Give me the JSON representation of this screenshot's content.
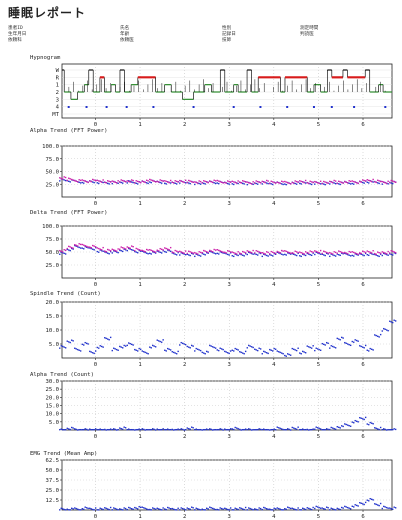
{
  "title": "睡眠レポート",
  "header": {
    "col1": [
      "患者ID",
      "生年月日",
      "依頼科"
    ],
    "col2": [
      "氏名",
      "年齢",
      "依頼医"
    ],
    "col3": [
      "性別",
      "記録日",
      "技師"
    ],
    "col4": [
      "",
      "測定時間",
      "判読医"
    ]
  },
  "chart_data": [
    {
      "type": "line",
      "title": "Hypnogram",
      "x_ticks": [
        "0",
        "1",
        "2",
        "3",
        "4",
        "5",
        "6"
      ],
      "xlim": [
        -0.75,
        6.65
      ],
      "y_ticks": [
        "W",
        "R",
        "1",
        "2",
        "3",
        "4",
        "MT"
      ],
      "series_colors": {
        "wake_rem": "#d81b1b",
        "nrem": "#2a8a2a",
        "marker": "#2233cc"
      },
      "stages": [
        {
          "x": -0.75,
          "s": "W"
        },
        {
          "x": -0.7,
          "s": "2"
        },
        {
          "x": -0.55,
          "s": "3"
        },
        {
          "x": -0.4,
          "s": "2"
        },
        {
          "x": -0.25,
          "s": "1"
        },
        {
          "x": -0.15,
          "s": "W"
        },
        {
          "x": -0.05,
          "s": "2"
        },
        {
          "x": 0.1,
          "s": "R"
        },
        {
          "x": 0.2,
          "s": "2"
        },
        {
          "x": 0.35,
          "s": "1"
        },
        {
          "x": 0.45,
          "s": "2"
        },
        {
          "x": 0.55,
          "s": "W"
        },
        {
          "x": 0.65,
          "s": "2"
        },
        {
          "x": 0.8,
          "s": "1"
        },
        {
          "x": 0.95,
          "s": "R"
        },
        {
          "x": 1.35,
          "s": "2"
        },
        {
          "x": 1.55,
          "s": "1"
        },
        {
          "x": 1.7,
          "s": "2"
        },
        {
          "x": 1.95,
          "s": "3"
        },
        {
          "x": 2.2,
          "s": "2"
        },
        {
          "x": 2.45,
          "s": "1"
        },
        {
          "x": 2.6,
          "s": "2"
        },
        {
          "x": 2.8,
          "s": "W"
        },
        {
          "x": 2.9,
          "s": "2"
        },
        {
          "x": 3.1,
          "s": "1"
        },
        {
          "x": 3.2,
          "s": "2"
        },
        {
          "x": 3.4,
          "s": "W"
        },
        {
          "x": 3.5,
          "s": "2"
        },
        {
          "x": 3.65,
          "s": "R"
        },
        {
          "x": 4.15,
          "s": "2"
        },
        {
          "x": 4.25,
          "s": "R"
        },
        {
          "x": 4.75,
          "s": "2"
        },
        {
          "x": 4.9,
          "s": "1"
        },
        {
          "x": 5.05,
          "s": "2"
        },
        {
          "x": 5.2,
          "s": "W"
        },
        {
          "x": 5.3,
          "s": "R"
        },
        {
          "x": 5.55,
          "s": "W"
        },
        {
          "x": 5.65,
          "s": "R"
        },
        {
          "x": 6.05,
          "s": "W"
        },
        {
          "x": 6.15,
          "s": "2"
        },
        {
          "x": 6.35,
          "s": "1"
        },
        {
          "x": 6.45,
          "s": "2"
        },
        {
          "x": 6.65,
          "s": "2"
        }
      ],
      "markers": [
        -0.6,
        -0.2,
        0.25,
        0.7,
        1.3,
        2.2,
        3.1,
        3.7,
        4.3,
        4.9,
        5.3,
        5.8,
        6.5
      ]
    },
    {
      "type": "scatter",
      "title": "Alpha Trend (FFT Power)",
      "ylim": [
        0,
        100
      ],
      "y_ticks": [
        100,
        75,
        50,
        25
      ],
      "x_ticks": [
        "0",
        "1",
        "2",
        "3",
        "4",
        "5",
        "6"
      ],
      "xlim": [
        -0.75,
        6.65
      ],
      "series": [
        {
          "name": "",
          "color": "#2233cc",
          "values": [
            34,
            32,
            30,
            29,
            30,
            29,
            28,
            28,
            29,
            30,
            28,
            29,
            30,
            29,
            28,
            28,
            29,
            28,
            27,
            28,
            29,
            28,
            27,
            27,
            28,
            26,
            27,
            28,
            27,
            27,
            26,
            27,
            28,
            27,
            27,
            26,
            28,
            27,
            28,
            27,
            29,
            30,
            29,
            27,
            28
          ]
        },
        {
          "name": "",
          "color": "#cc22aa",
          "values": [
            37,
            35,
            32,
            31,
            32,
            31,
            30,
            30,
            31,
            31,
            30,
            31,
            32,
            31,
            30,
            30,
            31,
            30,
            29,
            30,
            31,
            30,
            29,
            29,
            30,
            28,
            29,
            30,
            29,
            29,
            28,
            29,
            30,
            29,
            29,
            28,
            30,
            29,
            30,
            29,
            31,
            32,
            31,
            29,
            30
          ]
        }
      ]
    },
    {
      "type": "scatter",
      "title": "Delta Trend (FFT Power)",
      "ylim": [
        0,
        100
      ],
      "y_ticks": [
        100,
        75,
        50,
        25
      ],
      "x_ticks": [
        "0",
        "1",
        "2",
        "3",
        "4",
        "5",
        "6"
      ],
      "xlim": [
        -0.75,
        6.65
      ],
      "series": [
        {
          "name": "",
          "color": "#2233cc",
          "values": [
            48,
            55,
            60,
            58,
            56,
            52,
            49,
            50,
            53,
            55,
            51,
            49,
            48,
            50,
            52,
            47,
            46,
            45,
            44,
            47,
            49,
            48,
            46,
            44,
            45,
            47,
            46,
            44,
            45,
            47,
            46,
            45,
            44,
            46,
            47,
            45,
            44,
            46,
            45,
            44,
            45,
            46,
            44,
            45,
            46
          ]
        },
        {
          "name": "",
          "color": "#cc22aa",
          "values": [
            52,
            59,
            64,
            62,
            60,
            56,
            53,
            54,
            57,
            59,
            55,
            53,
            52,
            54,
            56,
            51,
            50,
            49,
            48,
            51,
            53,
            52,
            50,
            48,
            49,
            51,
            50,
            48,
            49,
            51,
            50,
            49,
            48,
            50,
            51,
            49,
            48,
            50,
            49,
            48,
            49,
            50,
            48,
            49,
            50
          ]
        }
      ]
    },
    {
      "type": "scatter",
      "title": "Spindle Trend (Count)",
      "ylim": [
        0,
        20
      ],
      "y_ticks": [
        20,
        15,
        10,
        5
      ],
      "x_ticks": [
        "0",
        "1",
        "2",
        "3",
        "4",
        "5",
        "6"
      ],
      "xlim": [
        -0.75,
        6.65
      ],
      "series": [
        {
          "name": "",
          "color": "#2233cc",
          "values": [
            4,
            6,
            3,
            5,
            2,
            4,
            7,
            3,
            4,
            5,
            3,
            2,
            4,
            6,
            3,
            2,
            5,
            4,
            3,
            2,
            4,
            3,
            2,
            3,
            2,
            4,
            3,
            2,
            3,
            2,
            1,
            3,
            2,
            4,
            3,
            5,
            4,
            7,
            5,
            6,
            4,
            3,
            8,
            10,
            13
          ]
        }
      ]
    },
    {
      "type": "scatter",
      "title": "Alpha Trend (Count)",
      "ylim": [
        0,
        30
      ],
      "y_ticks": [
        30,
        25,
        20,
        15,
        10,
        5
      ],
      "x_ticks": [
        "0",
        "1",
        "2",
        "3",
        "4",
        "5",
        "6"
      ],
      "xlim": [
        -0.75,
        6.65
      ],
      "series": [
        {
          "name": "",
          "color": "#2233cc",
          "values": [
            0,
            1,
            0,
            0,
            0,
            0,
            0,
            0,
            1,
            0,
            0,
            0,
            0,
            0,
            0,
            0,
            0,
            1,
            0,
            0,
            0,
            0,
            0,
            1,
            0,
            0,
            0,
            0,
            0,
            1,
            0,
            1,
            0,
            0,
            1,
            0,
            1,
            2,
            3,
            5,
            7,
            4,
            1,
            0,
            0
          ]
        }
      ]
    },
    {
      "type": "scatter",
      "title": "EMG Trend (Mean Amp)",
      "ylim": [
        0,
        62.5
      ],
      "y_ticks": [
        62.5,
        50.0,
        37.5,
        25.0,
        12.5
      ],
      "x_ticks": [
        "0",
        "1",
        "2",
        "3",
        "4",
        "5",
        "6"
      ],
      "xlim": [
        -0.75,
        6.65
      ],
      "series": [
        {
          "name": "",
          "color": "#2233cc",
          "values": [
            1,
            1,
            1,
            2,
            1,
            1,
            2,
            1,
            1,
            2,
            3,
            2,
            1,
            1,
            2,
            1,
            1,
            2,
            1,
            1,
            2,
            1,
            1,
            1,
            2,
            1,
            1,
            2,
            1,
            1,
            2,
            1,
            1,
            2,
            3,
            2,
            1,
            2,
            3,
            5,
            8,
            13,
            7,
            3,
            2
          ]
        }
      ]
    }
  ]
}
